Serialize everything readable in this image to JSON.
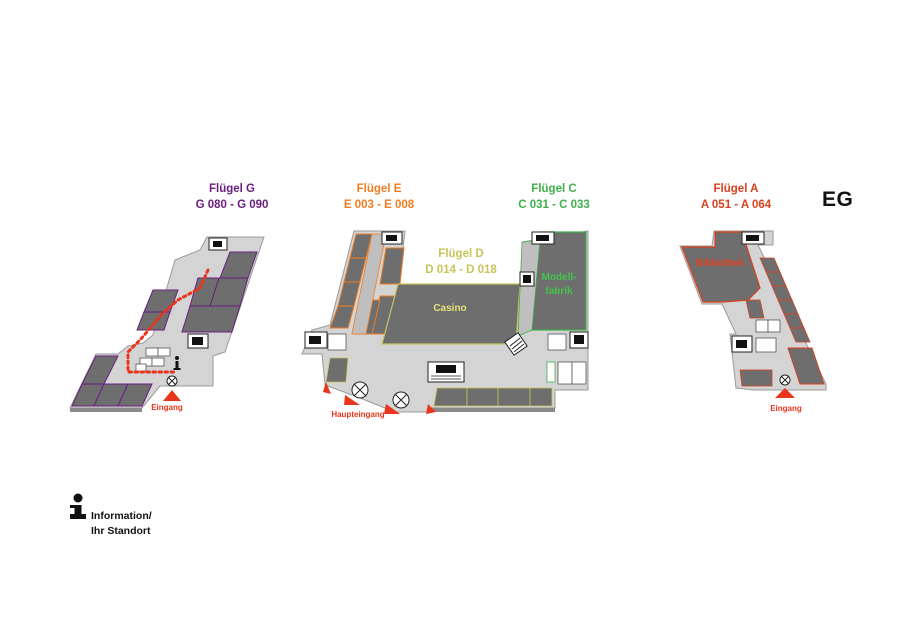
{
  "floor_code": "EG",
  "wings": {
    "g": {
      "title": "Flügel G",
      "rooms": "G 080 - G 090",
      "color": "#6b1f80"
    },
    "e": {
      "title": "Flügel E",
      "rooms": "E 003 - E 008",
      "color": "#ee7d22"
    },
    "d": {
      "title": "Flügel D",
      "rooms": "D 014 - D 018",
      "color": "#c8c45a"
    },
    "c": {
      "title": "Flügel C",
      "rooms": "C 031 - C 033",
      "color": "#3fb04a"
    },
    "a": {
      "title": "Flügel A",
      "rooms": "A 051 - A 064",
      "color": "#d8401e"
    }
  },
  "rooms": {
    "casino": "Casino",
    "modellfabrik_line1": "Modell-",
    "modellfabrik_line2": "fabrik",
    "bibliothek": "Bibliothek"
  },
  "entrances": {
    "g": "Eingang",
    "main": "Haupteingang",
    "a": "Eingang"
  },
  "legend": {
    "icon": "information-icon",
    "line1": "Information/",
    "line2": "Ihr Standort"
  },
  "colors": {
    "floor": "#d0d0d0",
    "room": "#6e6e6e",
    "wall": "#9a9a9a",
    "route": "#e8351b",
    "entrance_marker": "#e8351b"
  }
}
